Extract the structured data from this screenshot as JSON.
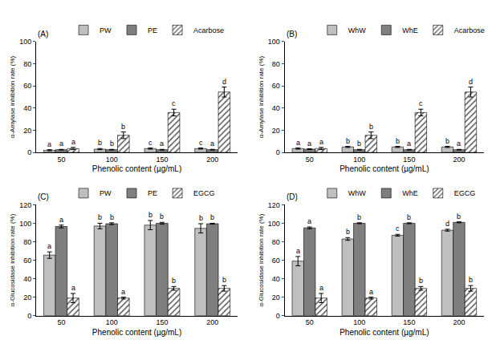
{
  "chart_data": [
    {
      "type": "bar",
      "title": "(A)",
      "x_label": "Phenolic content (µg/mL)",
      "y_label": "α-Amylase inhibition rate (%)",
      "categories": [
        "50",
        "100",
        "150",
        "200"
      ],
      "ylim": [
        0,
        100
      ],
      "yticks": [
        0,
        20,
        40,
        60,
        80,
        100
      ],
      "grid": false,
      "legend": "top left",
      "series": [
        {
          "name": "PW",
          "color": "#bfbfbf",
          "values": [
            2,
            3,
            3.5,
            3.5
          ],
          "errors": [
            0.5,
            0.5,
            0.5,
            0.5
          ],
          "letters": [
            "a",
            "b",
            "c",
            "c"
          ]
        },
        {
          "name": "PE",
          "color": "#7f7f7f",
          "values": [
            2.5,
            2.5,
            2.5,
            2.5
          ],
          "errors": [
            0.3,
            0.3,
            0.3,
            0.3
          ],
          "letters": [
            "a",
            "b",
            "a",
            "a"
          ]
        },
        {
          "name": "Acarbose",
          "color": "#595959",
          "marker": "hatched",
          "values": [
            3.5,
            15.5,
            36,
            54.5
          ],
          "errors": [
            1,
            3,
            3,
            4.5
          ],
          "letters": [
            "a",
            "b",
            "c",
            "d"
          ]
        }
      ]
    },
    {
      "type": "bar",
      "title": "(B)",
      "x_label": "Phenolic content (µg/mL)",
      "y_label": "α-Amylase inhibition rate (%)",
      "categories": [
        "50",
        "100",
        "150",
        "200"
      ],
      "ylim": [
        0,
        100
      ],
      "yticks": [
        0,
        20,
        40,
        60,
        80,
        100
      ],
      "grid": false,
      "legend": "top left",
      "series": [
        {
          "name": "WhW",
          "color": "#bfbfbf",
          "values": [
            3.5,
            5,
            5,
            5
          ],
          "errors": [
            0.5,
            0.5,
            0.5,
            0.5
          ],
          "letters": [
            "a",
            "b",
            "b",
            "b"
          ]
        },
        {
          "name": "WhE",
          "color": "#7f7f7f",
          "values": [
            3,
            2.5,
            2.5,
            2.5
          ],
          "errors": [
            0.3,
            0.3,
            0.3,
            0.3
          ],
          "letters": [
            "a",
            "b",
            "a",
            "a"
          ]
        },
        {
          "name": "Acarbose",
          "color": "#595959",
          "marker": "hatched",
          "values": [
            3.5,
            15.5,
            36,
            54.5
          ],
          "errors": [
            1,
            3,
            3,
            4.5
          ],
          "letters": [
            "a",
            "b",
            "c",
            "d"
          ]
        }
      ]
    },
    {
      "type": "bar",
      "title": "(C)",
      "x_label": "Phenolic content (µg/mL)",
      "y_label": "α-Glucosidase inhibition rate (%)",
      "categories": [
        "50",
        "100",
        "150",
        "200"
      ],
      "ylim": [
        0,
        120
      ],
      "yticks": [
        0,
        20,
        40,
        60,
        80,
        100,
        120
      ],
      "grid": false,
      "legend": "top left",
      "series": [
        {
          "name": "PW",
          "color": "#bfbfbf",
          "values": [
            65.5,
            97,
            98,
            94.5
          ],
          "errors": [
            3.5,
            3,
            5,
            5
          ],
          "letters": [
            "a",
            "b",
            "b",
            "b"
          ]
        },
        {
          "name": "PE",
          "color": "#7f7f7f",
          "values": [
            96.5,
            99.5,
            100,
            99.5
          ],
          "errors": [
            1.5,
            1,
            1,
            0.5
          ],
          "letters": [
            "a",
            "b",
            "b",
            "b"
          ]
        },
        {
          "name": "EGCG",
          "color": "#595959",
          "marker": "hatched",
          "values": [
            19,
            19,
            29.5,
            29.5
          ],
          "errors": [
            5,
            1,
            2,
            3
          ],
          "letters": [
            "a",
            "a",
            "b",
            "b"
          ]
        }
      ]
    },
    {
      "type": "bar",
      "title": "(D)",
      "x_label": "Phenolic content (µg/mL)",
      "y_label": "α-Glucosidase inhibition rate (%)",
      "categories": [
        "50",
        "100",
        "150",
        "200"
      ],
      "ylim": [
        0,
        120
      ],
      "yticks": [
        0,
        20,
        40,
        60,
        80,
        100,
        120
      ],
      "grid": false,
      "legend": "top left",
      "series": [
        {
          "name": "WhW",
          "color": "#bfbfbf",
          "values": [
            59,
            83,
            87,
            92.5
          ],
          "errors": [
            5,
            1.5,
            1,
            1
          ],
          "letters": [
            "a",
            "b",
            "c",
            "d"
          ]
        },
        {
          "name": "WhE",
          "color": "#7f7f7f",
          "values": [
            95,
            100,
            100,
            101
          ],
          "errors": [
            1,
            0.5,
            0.5,
            0.5
          ],
          "letters": [
            "a",
            "b",
            "b",
            "b"
          ]
        },
        {
          "name": "EGCG",
          "color": "#595959",
          "marker": "hatched",
          "values": [
            19,
            19,
            29.5,
            29.5
          ],
          "errors": [
            5,
            1,
            2,
            3
          ],
          "letters": [
            "a",
            "a",
            "b",
            "b"
          ]
        }
      ]
    }
  ]
}
